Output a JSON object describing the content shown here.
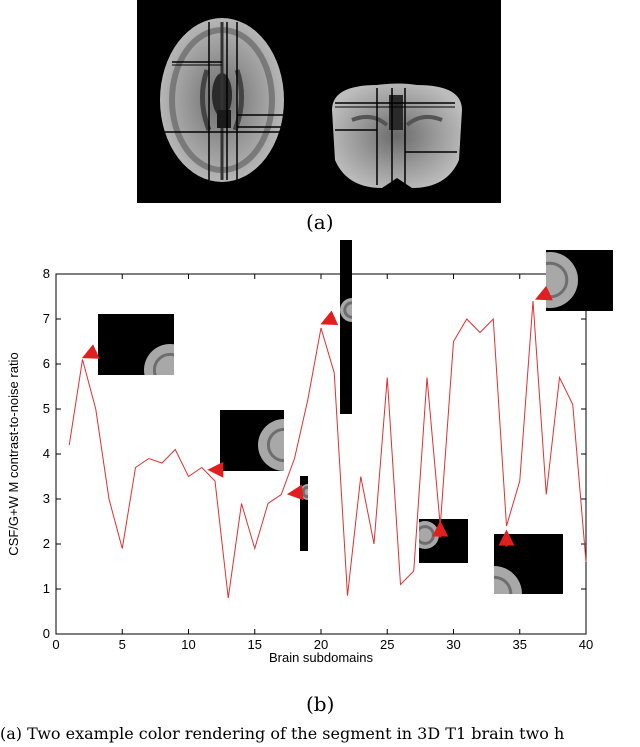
{
  "figure": {
    "label_a": "(a)",
    "label_b": "(b)",
    "caption_fragment": "(a) Two example color rendering of the segment in 3D T1 brain two h"
  },
  "chart_data": {
    "type": "line",
    "xlabel": "Brain subdomains",
    "ylabel": "CSF/G+W M contrast-to-noise ratio",
    "xlim": [
      0,
      40
    ],
    "ylim": [
      0,
      8
    ],
    "xticks": [
      0,
      5,
      10,
      15,
      20,
      25,
      30,
      35,
      40
    ],
    "yticks": [
      0,
      1,
      2,
      3,
      4,
      5,
      6,
      7,
      8
    ],
    "grid": false,
    "series": [
      {
        "color": "#e03030",
        "x": [
          1,
          2,
          3,
          4,
          5,
          6,
          7,
          8,
          9,
          10,
          11,
          12,
          13,
          14,
          15,
          16,
          17,
          18,
          19,
          20,
          21,
          22,
          23,
          24,
          25,
          26,
          27,
          28,
          29,
          30,
          31,
          32,
          33,
          34,
          35,
          36,
          37,
          38,
          39,
          40
        ],
        "y": [
          4.2,
          6.1,
          5.0,
          3.0,
          1.9,
          3.7,
          3.9,
          3.8,
          4.1,
          3.5,
          3.7,
          3.4,
          0.8,
          2.9,
          1.9,
          2.9,
          3.1,
          3.9,
          5.2,
          6.8,
          5.8,
          0.85,
          3.5,
          2.0,
          5.7,
          1.1,
          1.4,
          5.7,
          2.4,
          6.5,
          7.0,
          6.7,
          7.0,
          2.4,
          3.4,
          7.4,
          3.1,
          5.7,
          5.1,
          1.6
        ]
      }
    ],
    "annotation_arrows": [
      {
        "x": 2,
        "y": 6.1
      },
      {
        "x": 11.5,
        "y": 3.65
      },
      {
        "x": 17.5,
        "y": 3.05
      },
      {
        "x": 20,
        "y": 6.85
      },
      {
        "x": 29,
        "y": 2.5
      },
      {
        "x": 34,
        "y": 2.3
      },
      {
        "x": 36.2,
        "y": 7.4
      }
    ]
  }
}
